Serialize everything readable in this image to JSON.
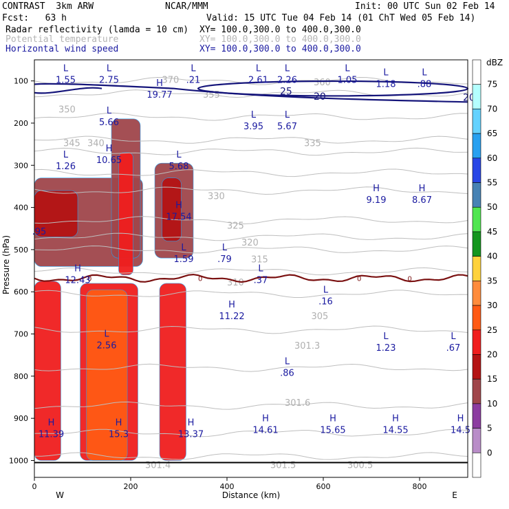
{
  "header": {
    "model": "CONTRAST  3km ARW",
    "center": "NCAR/MMM",
    "init": "Init: 00 UTC Sun 02 Feb 14",
    "fcst": "Fcst:   63 h",
    "valid": "Valid: 15 UTC Tue 04 Feb 14 (01 ChT Wed 05 Feb 14)",
    "fields": [
      {
        "name": "Radar reflectivity (lamda = 10 cm)",
        "xy": "XY= 100.0,300.0 to 400.0,300.0",
        "color": "#000000"
      },
      {
        "name": "Potential temperature",
        "xy": "XY= 100.0,300.0 to 400.0,300.0",
        "color": "#b4b4b4"
      },
      {
        "name": "Horizontal wind speed",
        "xy": "XY= 100.0,300.0 to 400.0,300.0",
        "color": "#1a1aa0"
      }
    ]
  },
  "chart_data": {
    "type": "heatmap",
    "title": "Radar reflectivity (lamda = 10 cm)",
    "xlabel": "Distance (km)",
    "ylabel": "Pressure (hPa)",
    "xlim": [
      0,
      900
    ],
    "ylim": [
      1040,
      50
    ],
    "x_ticks": [
      "0",
      "200",
      "400",
      "600",
      "800"
    ],
    "x_tick_values": [
      0,
      200,
      400,
      600,
      800
    ],
    "y_ticks": [
      "100",
      "200",
      "300",
      "400",
      "500",
      "600",
      "700",
      "800",
      "900",
      "1000"
    ],
    "y_tick_values": [
      100,
      200,
      300,
      400,
      500,
      600,
      700,
      800,
      900,
      1000
    ],
    "x_end_labels": {
      "left": "W",
      "right": "E"
    },
    "colorbar": {
      "unit": "dBZ",
      "levels": [
        "75",
        "70",
        "65",
        "60",
        "55",
        "50",
        "45",
        "40",
        "35",
        "30",
        "25",
        "20",
        "15",
        "10",
        "5",
        "0"
      ],
      "colors": [
        "#ffffff",
        "#b98dc8",
        "#8c3ca0",
        "#a0464b",
        "#b41414",
        "#f01e1e",
        "#ff5a14",
        "#ff8c3c",
        "#ffd23c",
        "#14961e",
        "#50e650",
        "#4682b4",
        "#2846e6",
        "#28a0f0",
        "#64d2ff",
        "#b4ffff",
        "#ffffff"
      ]
    },
    "reflectivity_cells": [
      {
        "x0": 0,
        "x1": 55,
        "p0": 1000,
        "p1": 575,
        "dbz": 20
      },
      {
        "x0": 95,
        "x1": 215,
        "p0": 1000,
        "p1": 580,
        "dbz": 20
      },
      {
        "x0": 108,
        "x1": 193,
        "p0": 1000,
        "p1": 595,
        "dbz": 25
      },
      {
        "x0": 260,
        "x1": 315,
        "p0": 1000,
        "p1": 580,
        "dbz": 20
      },
      {
        "x0": 0,
        "x1": 225,
        "p0": 540,
        "p1": 330,
        "dbz": 10
      },
      {
        "x0": 0,
        "x1": 90,
        "p0": 470,
        "p1": 360,
        "dbz": 15
      },
      {
        "x0": 160,
        "x1": 220,
        "p0": 520,
        "p1": 190,
        "dbz": 10
      },
      {
        "x0": 175,
        "x1": 205,
        "p0": 560,
        "p1": 270,
        "dbz": 20
      },
      {
        "x0": 250,
        "x1": 330,
        "p0": 520,
        "p1": 295,
        "dbz": 10
      },
      {
        "x0": 265,
        "x1": 305,
        "p0": 480,
        "p1": 330,
        "dbz": 15
      }
    ],
    "wind_speed_contours": [
      {
        "label": "25",
        "level": 25
      },
      {
        "label": "20",
        "level": 20
      }
    ],
    "theta_labels": [
      "370",
      "360",
      "355",
      "350",
      "345",
      "340",
      "335",
      "330",
      "325",
      "320",
      "315",
      "310",
      "305",
      "301.3",
      "301.6",
      "301.4",
      "301.5",
      "300.5"
    ],
    "freezing_line_label": "0",
    "extrema": [
      {
        "type": "L",
        "value": "1.55",
        "x": 65,
        "p": 85
      },
      {
        "type": "L",
        "value": "2.75",
        "x": 155,
        "p": 85
      },
      {
        "type": "L",
        "value": ".21",
        "x": 330,
        "p": 85
      },
      {
        "type": "L",
        "value": "2.61",
        "x": 465,
        "p": 85
      },
      {
        "type": "L",
        "value": "2.26",
        "x": 525,
        "p": 85
      },
      {
        "type": "L",
        "value": "1.05",
        "x": 650,
        "p": 85
      },
      {
        "type": "L",
        "value": "1.18",
        "x": 730,
        "p": 95
      },
      {
        "type": "L",
        "value": ".88",
        "x": 810,
        "p": 95
      },
      {
        "type": "H",
        "value": "19.77",
        "x": 260,
        "p": 120
      },
      {
        "type": "L",
        "value": "5.66",
        "x": 155,
        "p": 185
      },
      {
        "type": "L",
        "value": "3.95",
        "x": 455,
        "p": 195
      },
      {
        "type": "L",
        "value": "5.67",
        "x": 525,
        "p": 195
      },
      {
        "type": "L",
        "value": "1.26",
        "x": 65,
        "p": 290
      },
      {
        "type": "H",
        "value": "10.65",
        "x": 155,
        "p": 275
      },
      {
        "type": "L",
        "value": "5.68",
        "x": 300,
        "p": 290
      },
      {
        "type": "H",
        "value": "9.19",
        "x": 710,
        "p": 370
      },
      {
        "type": "H",
        "value": "8.67",
        "x": 805,
        "p": 370
      },
      {
        "type": "H",
        "value": "17.54",
        "x": 300,
        "p": 410
      },
      {
        "type": "",
        "value": ".95",
        "x": 10,
        "p": 445
      },
      {
        "type": "L",
        "value": "1.59",
        "x": 310,
        "p": 510
      },
      {
        "type": "L",
        "value": ".79",
        "x": 395,
        "p": 510
      },
      {
        "type": "H",
        "value": "12.43",
        "x": 90,
        "p": 560
      },
      {
        "type": "L",
        "value": ".37",
        "x": 470,
        "p": 560
      },
      {
        "type": "L",
        "value": ".16",
        "x": 605,
        "p": 610
      },
      {
        "type": "H",
        "value": "11.22",
        "x": 410,
        "p": 645
      },
      {
        "type": "L",
        "value": "2.56",
        "x": 150,
        "p": 715
      },
      {
        "type": "L",
        "value": "1.23",
        "x": 730,
        "p": 720
      },
      {
        "type": "L",
        "value": ".67",
        "x": 870,
        "p": 720
      },
      {
        "type": "L",
        "value": ".86",
        "x": 525,
        "p": 780
      },
      {
        "type": "H",
        "value": "11.39",
        "x": 35,
        "p": 925
      },
      {
        "type": "H",
        "value": "15.3",
        "x": 175,
        "p": 925
      },
      {
        "type": "H",
        "value": "13.37",
        "x": 325,
        "p": 925
      },
      {
        "type": "H",
        "value": "14.61",
        "x": 480,
        "p": 915
      },
      {
        "type": "H",
        "value": "15.65",
        "x": 620,
        "p": 915
      },
      {
        "type": "H",
        "value": "14.55",
        "x": 750,
        "p": 915
      },
      {
        "type": "H",
        "value": "14.5",
        "x": 885,
        "p": 915
      }
    ]
  }
}
